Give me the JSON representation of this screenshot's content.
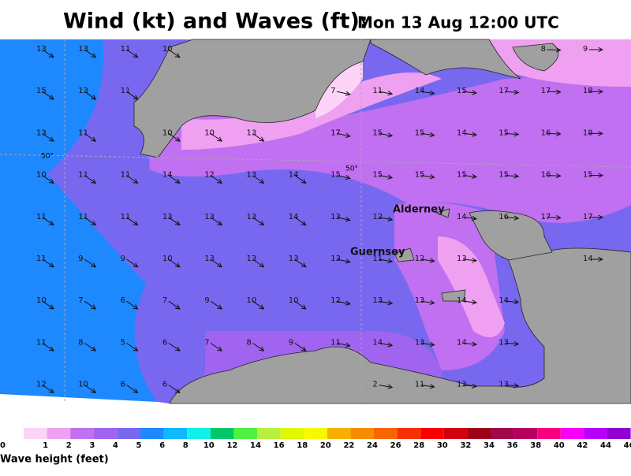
{
  "title": {
    "main": "Wind (kt) and Waves (ft):",
    "time": "Mon 13 Aug 12:00 UTC"
  },
  "wind": {
    "rows": [
      [
        13,
        13,
        11,
        10,
        null,
        null,
        null,
        null,
        null,
        null,
        null,
        null,
        8,
        9
      ],
      [
        15,
        13,
        11,
        null,
        null,
        null,
        null,
        7,
        11,
        14,
        15,
        17,
        17,
        18
      ],
      [
        13,
        11,
        null,
        10,
        10,
        13,
        null,
        17,
        15,
        15,
        14,
        15,
        16,
        18
      ],
      [
        10,
        11,
        11,
        14,
        12,
        13,
        14,
        15,
        15,
        15,
        15,
        15,
        16,
        15
      ],
      [
        11,
        11,
        11,
        13,
        13,
        13,
        14,
        13,
        12,
        null,
        14,
        16,
        17,
        17
      ],
      [
        11,
        9,
        9,
        10,
        13,
        13,
        13,
        13,
        11,
        12,
        13,
        null,
        null,
        14
      ],
      [
        10,
        7,
        6,
        7,
        9,
        10,
        10,
        12,
        13,
        13,
        14,
        14,
        null,
        null
      ],
      [
        11,
        8,
        5,
        6,
        7,
        8,
        9,
        11,
        14,
        13,
        14,
        13,
        null,
        null
      ],
      [
        12,
        10,
        6,
        6,
        null,
        null,
        null,
        null,
        2,
        11,
        13,
        13,
        null,
        null
      ]
    ]
  },
  "places": {
    "alderney": "Alderney",
    "guernsey": "Guernsey"
  },
  "latitude_labels": [
    "50°",
    "50°"
  ],
  "legend": {
    "labels": [
      0,
      1,
      2,
      3,
      4,
      5,
      6,
      8,
      10,
      12,
      14,
      16,
      18,
      20,
      22,
      24,
      26,
      28,
      30,
      32,
      34,
      36,
      38,
      40,
      42,
      44,
      46
    ],
    "colors": [
      "#fcd4f8",
      "#f0a0f0",
      "#c070f0",
      "#a064f0",
      "#7868f0",
      "#1e88ff",
      "#10b8ff",
      "#10f0e8",
      "#00c868",
      "#50f040",
      "#b8f040",
      "#e0f800",
      "#f8f800",
      "#f8b000",
      "#f88c00",
      "#f86400",
      "#f83000",
      "#f80000",
      "#d00010",
      "#a00018",
      "#a00848",
      "#b80060",
      "#f80080",
      "#f800f8",
      "#b800f8",
      "#9000d0",
      "#7040a0"
    ],
    "caption": "Wave height (feet)"
  }
}
